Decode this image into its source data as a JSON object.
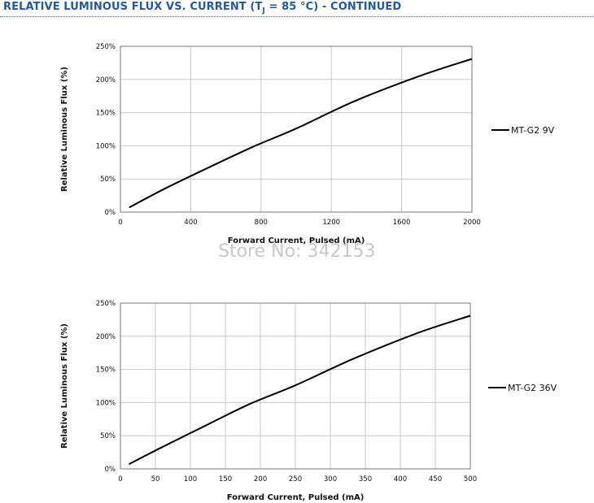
{
  "header": {
    "title_main": "RELATIVE LUMINOUS FLUX VS. CURRENT (T",
    "title_subscript": "J",
    "title_tail": " = 85 °C) - CONTINUED"
  },
  "watermark": "Store No: 342153",
  "chart_data": [
    {
      "type": "line",
      "xlabel": "Forward Current, Pulsed (mA)",
      "ylabel": "Relative Luminous Flux (%)",
      "xlim": [
        0,
        2000
      ],
      "ylim": [
        0,
        250
      ],
      "xticks": [
        0,
        400,
        800,
        1200,
        1600,
        2000
      ],
      "yticks": [
        0,
        50,
        100,
        150,
        200,
        250
      ],
      "ytick_labels": [
        "0%",
        "50%",
        "100%",
        "150%",
        "200%",
        "250%"
      ],
      "grid": true,
      "legend": "right",
      "series": [
        {
          "name": "MT-G2 9V",
          "x": [
            50,
            250,
            500,
            750,
            1000,
            1330,
            1700,
            2000
          ],
          "y": [
            7,
            35,
            67,
            98,
            126,
            167,
            205,
            231
          ]
        }
      ]
    },
    {
      "type": "line",
      "xlabel": "Forward Current, Pulsed (mA)",
      "ylabel": "Relative Luminous Flux (%)",
      "xlim": [
        0,
        500
      ],
      "ylim": [
        0,
        250
      ],
      "xticks": [
        0,
        50,
        100,
        150,
        200,
        250,
        300,
        350,
        400,
        450,
        500
      ],
      "yticks": [
        0,
        50,
        100,
        150,
        200,
        250
      ],
      "ytick_labels": [
        "0%",
        "50%",
        "100%",
        "150%",
        "200%",
        "250%"
      ],
      "grid": true,
      "legend": "right",
      "series": [
        {
          "name": "MT-G2 36V",
          "x": [
            12,
            60,
            125,
            185,
            250,
            335,
            425,
            500
          ],
          "y": [
            7,
            33,
            67,
            98,
            126,
            167,
            205,
            231
          ]
        }
      ]
    }
  ]
}
